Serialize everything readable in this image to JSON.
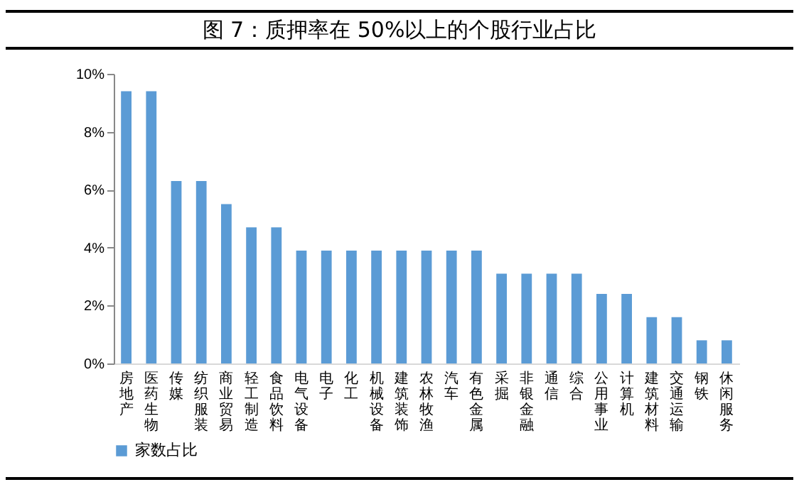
{
  "chart_data": {
    "type": "bar",
    "title": "图 7：质押率在 50%以上的个股行业占比",
    "categories": [
      "房地产",
      "医药生物",
      "传媒",
      "纺织服装",
      "商业贸易",
      "轻工制造",
      "食品饮料",
      "电气设备",
      "电子",
      "化工",
      "机械设备",
      "建筑装饰",
      "农林牧渔",
      "汽车",
      "有色金属",
      "采掘",
      "非银金融",
      "通信",
      "综合",
      "公用事业",
      "计算机",
      "建筑材料",
      "交通运输",
      "钢铁",
      "休闲服务"
    ],
    "series": [
      {
        "name": "家数占比",
        "color": "#5b9bd5",
        "values": [
          9.4,
          9.4,
          6.3,
          6.3,
          5.5,
          4.7,
          4.7,
          3.9,
          3.9,
          3.9,
          3.9,
          3.9,
          3.9,
          3.9,
          3.9,
          3.1,
          3.1,
          3.1,
          3.1,
          2.4,
          2.4,
          1.6,
          1.6,
          0.8,
          0.8
        ]
      }
    ],
    "ylim": [
      0,
      10
    ],
    "yticks": [
      {
        "value": 0,
        "label": "0%"
      },
      {
        "value": 2,
        "label": "2%"
      },
      {
        "value": 4,
        "label": "4%"
      },
      {
        "value": 6,
        "label": "6%"
      },
      {
        "value": 8,
        "label": "8%"
      },
      {
        "value": 10,
        "label": "10%"
      }
    ],
    "grid": false,
    "legend": "bottom"
  }
}
